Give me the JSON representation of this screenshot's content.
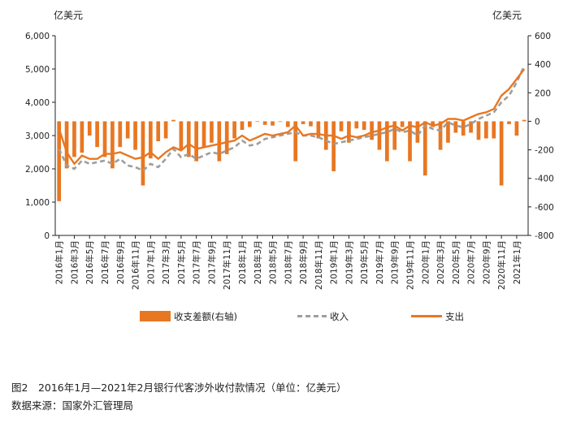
{
  "chart_data": {
    "type": "bar+line",
    "left_axis_unit": "亿美元",
    "right_axis_unit": "亿美元",
    "left_ylim": [
      0,
      6000
    ],
    "left_ticks": [
      "0",
      "1,000",
      "2,000",
      "3,000",
      "4,000",
      "5,000",
      "6,000"
    ],
    "right_ylim": [
      -800,
      600
    ],
    "right_ticks": [
      "-800",
      "-600",
      "-400",
      "-200",
      "0",
      "200",
      "400",
      "600"
    ],
    "categories": [
      "2016年1月",
      "2016年2月",
      "2016年3月",
      "2016年4月",
      "2016年5月",
      "2016年6月",
      "2016年7月",
      "2016年8月",
      "2016年9月",
      "2016年10月",
      "2016年11月",
      "2016年12月",
      "2017年1月",
      "2017年2月",
      "2017年3月",
      "2017年4月",
      "2017年5月",
      "2017年6月",
      "2017年7月",
      "2017年8月",
      "2017年9月",
      "2017年10月",
      "2017年11月",
      "2017年12月",
      "2018年1月",
      "2018年2月",
      "2018年3月",
      "2018年4月",
      "2018年5月",
      "2018年6月",
      "2018年7月",
      "2018年8月",
      "2018年9月",
      "2018年10月",
      "2018年11月",
      "2018年12月",
      "2019年1月",
      "2019年2月",
      "2019年3月",
      "2019年4月",
      "2019年5月",
      "2019年6月",
      "2019年7月",
      "2019年8月",
      "2019年9月",
      "2019年10月",
      "2019年11月",
      "2019年12月",
      "2020年1月",
      "2020年2月",
      "2020年3月",
      "2020年4月",
      "2020年5月",
      "2020年6月",
      "2020年7月",
      "2020年8月",
      "2020年9月",
      "2020年10月",
      "2020年11月",
      "2020年12月",
      "2021年1月",
      "2021年2月"
    ],
    "x_tick_labels": [
      "2016年1月",
      "2016年3月",
      "2016年5月",
      "2016年7月",
      "2016年9月",
      "2016年11月",
      "2017年1月",
      "2017年3月",
      "2017年5月",
      "2017年7月",
      "2017年9月",
      "2017年11月",
      "2018年1月",
      "2018年3月",
      "2018年5月",
      "2018年7月",
      "2018年9月",
      "2018年11月",
      "2019年1月",
      "2019年3月",
      "2019年5月",
      "2019年7月",
      "2019年9月",
      "2019年11月",
      "2020年1月",
      "2020年3月",
      "2020年5月",
      "2020年7月",
      "2020年9月",
      "2020年11月",
      "2021年1月"
    ],
    "series": [
      {
        "name": "收支差额(右轴)",
        "type": "bar",
        "axis": "right",
        "values": [
          -560,
          -330,
          -250,
          -220,
          -100,
          -180,
          -250,
          -330,
          -180,
          -120,
          -200,
          -450,
          -260,
          -140,
          -120,
          10,
          -200,
          -250,
          -280,
          -180,
          -150,
          -280,
          -230,
          -120,
          -60,
          -40,
          0,
          -25,
          -30,
          0,
          -40,
          -280,
          -20,
          -35,
          -120,
          -200,
          -350,
          -70,
          -150,
          -50,
          -60,
          -130,
          -200,
          -280,
          -200,
          -40,
          -280,
          -150,
          -380,
          -40,
          -200,
          -150,
          -80,
          -100,
          -80,
          -130,
          -120,
          -120,
          -450,
          -20,
          -100,
          10
        ]
      },
      {
        "name": "收入",
        "type": "line",
        "axis": "left",
        "dash": true,
        "values": [
          2600,
          2100,
          2000,
          2250,
          2150,
          2200,
          2250,
          2150,
          2300,
          2100,
          2050,
          1950,
          2150,
          2050,
          2300,
          2600,
          2350,
          2450,
          2300,
          2400,
          2500,
          2450,
          2550,
          2650,
          2850,
          2700,
          2750,
          2900,
          2950,
          3000,
          3050,
          3100,
          3000,
          3000,
          2950,
          2850,
          2750,
          2800,
          2850,
          2900,
          2950,
          3000,
          3050,
          3100,
          3200,
          3100,
          3150,
          3000,
          3300,
          3200,
          3150,
          3400,
          3300,
          3250,
          3350,
          3500,
          3600,
          3700,
          4000,
          4200,
          4600,
          5100
        ]
      },
      {
        "name": "支出",
        "type": "line",
        "axis": "left",
        "dash": false,
        "values": [
          3200,
          2500,
          2150,
          2400,
          2300,
          2300,
          2450,
          2450,
          2500,
          2400,
          2300,
          2350,
          2500,
          2300,
          2500,
          2650,
          2550,
          2750,
          2600,
          2650,
          2700,
          2750,
          2800,
          2850,
          3000,
          2850,
          2950,
          3050,
          3000,
          3050,
          3100,
          3300,
          3000,
          3050,
          3050,
          3000,
          3000,
          2900,
          3000,
          2950,
          3000,
          3100,
          3150,
          3250,
          3300,
          3150,
          3300,
          3250,
          3400,
          3300,
          3350,
          3500,
          3500,
          3450,
          3550,
          3650,
          3700,
          3800,
          4200,
          4400,
          4700,
          5000
        ]
      }
    ]
  },
  "caption": {
    "title": "图2　2016年1月—2021年2月银行代客涉外收付款情况（单位：亿美元）",
    "source": "数据来源：国家外汇管理局"
  },
  "colors": {
    "bar": "#E87722",
    "income_line": "#9E9E9E",
    "expense_line": "#E87722",
    "axis": "#222222"
  }
}
